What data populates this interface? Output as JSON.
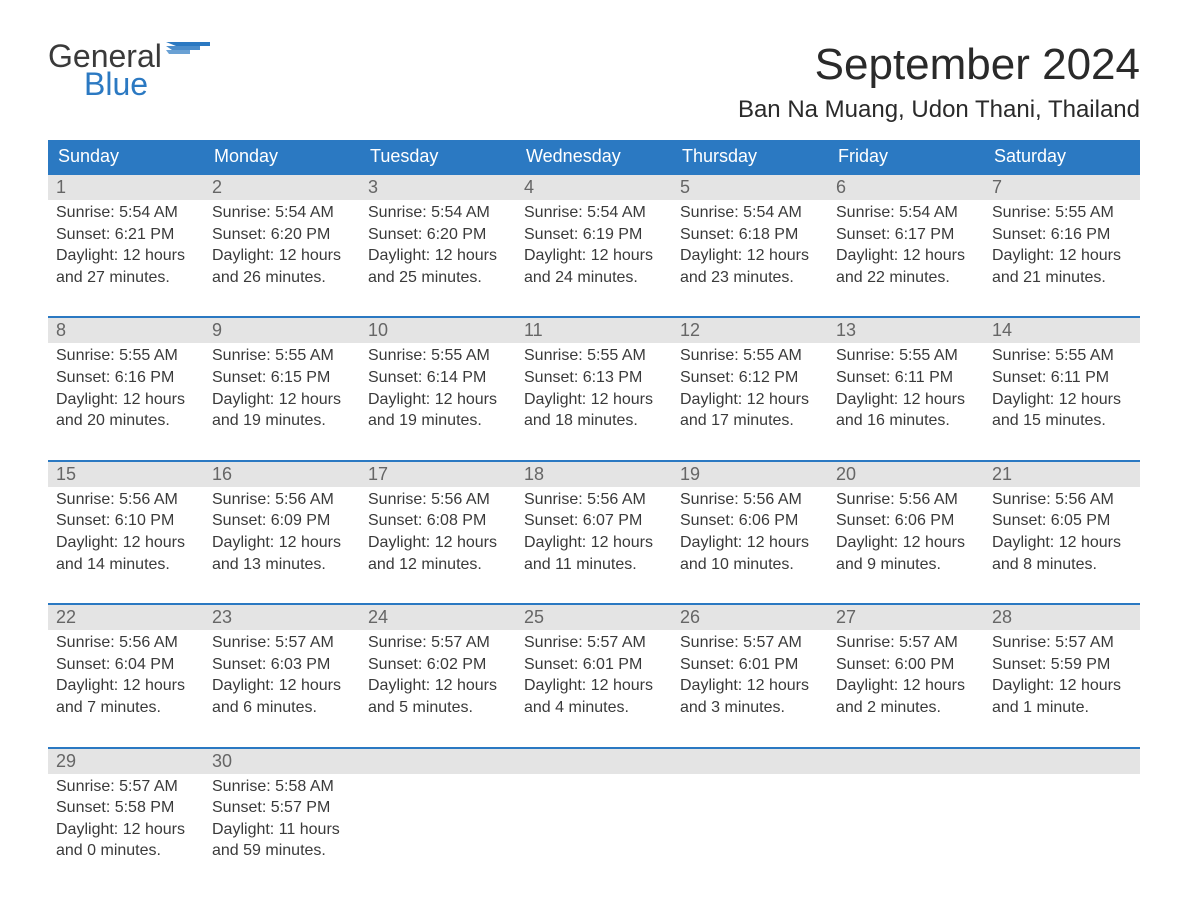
{
  "logo": {
    "line1": "General",
    "line2": "Blue",
    "color_general": "#3a3a3a",
    "color_blue": "#2b79c2"
  },
  "title": "September 2024",
  "location": "Ban Na Muang, Udon Thani, Thailand",
  "colors": {
    "header_bg": "#2b79c2",
    "header_text": "#ffffff",
    "daynum_bg": "#e4e4e4",
    "daynum_text": "#666666",
    "body_text": "#3a3a3a",
    "row_border": "#2b79c2",
    "page_bg": "#ffffff"
  },
  "fonts": {
    "title_size_pt": 33,
    "location_size_pt": 18,
    "weekday_size_pt": 14,
    "daynum_size_pt": 14,
    "body_size_pt": 12
  },
  "weekdays": [
    "Sunday",
    "Monday",
    "Tuesday",
    "Wednesday",
    "Thursday",
    "Friday",
    "Saturday"
  ],
  "weeks": [
    [
      {
        "num": "1",
        "sunrise": "Sunrise: 5:54 AM",
        "sunset": "Sunset: 6:21 PM",
        "day1": "Daylight: 12 hours",
        "day2": "and 27 minutes."
      },
      {
        "num": "2",
        "sunrise": "Sunrise: 5:54 AM",
        "sunset": "Sunset: 6:20 PM",
        "day1": "Daylight: 12 hours",
        "day2": "and 26 minutes."
      },
      {
        "num": "3",
        "sunrise": "Sunrise: 5:54 AM",
        "sunset": "Sunset: 6:20 PM",
        "day1": "Daylight: 12 hours",
        "day2": "and 25 minutes."
      },
      {
        "num": "4",
        "sunrise": "Sunrise: 5:54 AM",
        "sunset": "Sunset: 6:19 PM",
        "day1": "Daylight: 12 hours",
        "day2": "and 24 minutes."
      },
      {
        "num": "5",
        "sunrise": "Sunrise: 5:54 AM",
        "sunset": "Sunset: 6:18 PM",
        "day1": "Daylight: 12 hours",
        "day2": "and 23 minutes."
      },
      {
        "num": "6",
        "sunrise": "Sunrise: 5:54 AM",
        "sunset": "Sunset: 6:17 PM",
        "day1": "Daylight: 12 hours",
        "day2": "and 22 minutes."
      },
      {
        "num": "7",
        "sunrise": "Sunrise: 5:55 AM",
        "sunset": "Sunset: 6:16 PM",
        "day1": "Daylight: 12 hours",
        "day2": "and 21 minutes."
      }
    ],
    [
      {
        "num": "8",
        "sunrise": "Sunrise: 5:55 AM",
        "sunset": "Sunset: 6:16 PM",
        "day1": "Daylight: 12 hours",
        "day2": "and 20 minutes."
      },
      {
        "num": "9",
        "sunrise": "Sunrise: 5:55 AM",
        "sunset": "Sunset: 6:15 PM",
        "day1": "Daylight: 12 hours",
        "day2": "and 19 minutes."
      },
      {
        "num": "10",
        "sunrise": "Sunrise: 5:55 AM",
        "sunset": "Sunset: 6:14 PM",
        "day1": "Daylight: 12 hours",
        "day2": "and 19 minutes."
      },
      {
        "num": "11",
        "sunrise": "Sunrise: 5:55 AM",
        "sunset": "Sunset: 6:13 PM",
        "day1": "Daylight: 12 hours",
        "day2": "and 18 minutes."
      },
      {
        "num": "12",
        "sunrise": "Sunrise: 5:55 AM",
        "sunset": "Sunset: 6:12 PM",
        "day1": "Daylight: 12 hours",
        "day2": "and 17 minutes."
      },
      {
        "num": "13",
        "sunrise": "Sunrise: 5:55 AM",
        "sunset": "Sunset: 6:11 PM",
        "day1": "Daylight: 12 hours",
        "day2": "and 16 minutes."
      },
      {
        "num": "14",
        "sunrise": "Sunrise: 5:55 AM",
        "sunset": "Sunset: 6:11 PM",
        "day1": "Daylight: 12 hours",
        "day2": "and 15 minutes."
      }
    ],
    [
      {
        "num": "15",
        "sunrise": "Sunrise: 5:56 AM",
        "sunset": "Sunset: 6:10 PM",
        "day1": "Daylight: 12 hours",
        "day2": "and 14 minutes."
      },
      {
        "num": "16",
        "sunrise": "Sunrise: 5:56 AM",
        "sunset": "Sunset: 6:09 PM",
        "day1": "Daylight: 12 hours",
        "day2": "and 13 minutes."
      },
      {
        "num": "17",
        "sunrise": "Sunrise: 5:56 AM",
        "sunset": "Sunset: 6:08 PM",
        "day1": "Daylight: 12 hours",
        "day2": "and 12 minutes."
      },
      {
        "num": "18",
        "sunrise": "Sunrise: 5:56 AM",
        "sunset": "Sunset: 6:07 PM",
        "day1": "Daylight: 12 hours",
        "day2": "and 11 minutes."
      },
      {
        "num": "19",
        "sunrise": "Sunrise: 5:56 AM",
        "sunset": "Sunset: 6:06 PM",
        "day1": "Daylight: 12 hours",
        "day2": "and 10 minutes."
      },
      {
        "num": "20",
        "sunrise": "Sunrise: 5:56 AM",
        "sunset": "Sunset: 6:06 PM",
        "day1": "Daylight: 12 hours",
        "day2": "and 9 minutes."
      },
      {
        "num": "21",
        "sunrise": "Sunrise: 5:56 AM",
        "sunset": "Sunset: 6:05 PM",
        "day1": "Daylight: 12 hours",
        "day2": "and 8 minutes."
      }
    ],
    [
      {
        "num": "22",
        "sunrise": "Sunrise: 5:56 AM",
        "sunset": "Sunset: 6:04 PM",
        "day1": "Daylight: 12 hours",
        "day2": "and 7 minutes."
      },
      {
        "num": "23",
        "sunrise": "Sunrise: 5:57 AM",
        "sunset": "Sunset: 6:03 PM",
        "day1": "Daylight: 12 hours",
        "day2": "and 6 minutes."
      },
      {
        "num": "24",
        "sunrise": "Sunrise: 5:57 AM",
        "sunset": "Sunset: 6:02 PM",
        "day1": "Daylight: 12 hours",
        "day2": "and 5 minutes."
      },
      {
        "num": "25",
        "sunrise": "Sunrise: 5:57 AM",
        "sunset": "Sunset: 6:01 PM",
        "day1": "Daylight: 12 hours",
        "day2": "and 4 minutes."
      },
      {
        "num": "26",
        "sunrise": "Sunrise: 5:57 AM",
        "sunset": "Sunset: 6:01 PM",
        "day1": "Daylight: 12 hours",
        "day2": "and 3 minutes."
      },
      {
        "num": "27",
        "sunrise": "Sunrise: 5:57 AM",
        "sunset": "Sunset: 6:00 PM",
        "day1": "Daylight: 12 hours",
        "day2": "and 2 minutes."
      },
      {
        "num": "28",
        "sunrise": "Sunrise: 5:57 AM",
        "sunset": "Sunset: 5:59 PM",
        "day1": "Daylight: 12 hours",
        "day2": "and 1 minute."
      }
    ],
    [
      {
        "num": "29",
        "sunrise": "Sunrise: 5:57 AM",
        "sunset": "Sunset: 5:58 PM",
        "day1": "Daylight: 12 hours",
        "day2": "and 0 minutes."
      },
      {
        "num": "30",
        "sunrise": "Sunrise: 5:58 AM",
        "sunset": "Sunset: 5:57 PM",
        "day1": "Daylight: 11 hours",
        "day2": "and 59 minutes."
      },
      null,
      null,
      null,
      null,
      null
    ]
  ]
}
